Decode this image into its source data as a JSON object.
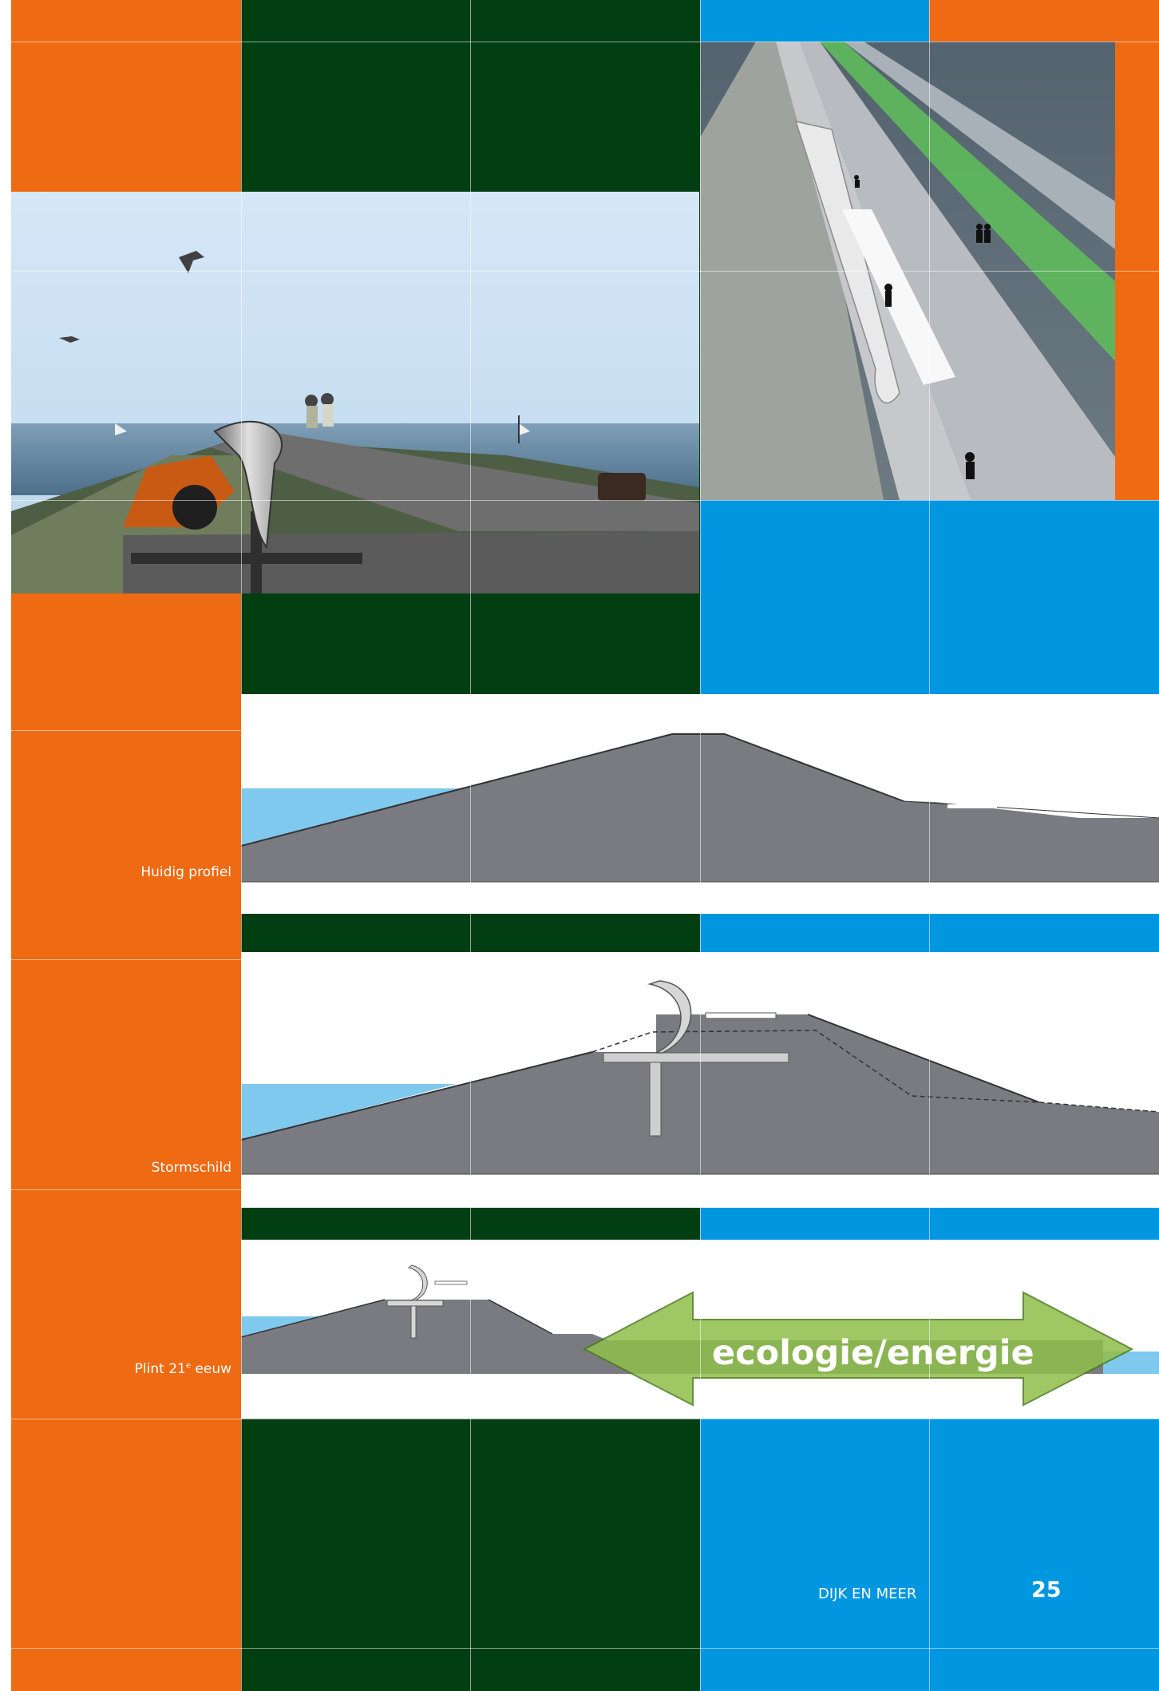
{
  "profiles": {
    "current_label": "Huidig profiel",
    "stormshield_label": "Stormschild",
    "plinth_label_main": "Plint 21",
    "plinth_label_sup": "e",
    "plinth_label_end": " eeuw",
    "arrow_text": "ecologie/energie"
  },
  "footer": {
    "title": "DIJK EN MEER",
    "page_number": "25"
  },
  "colors": {
    "orange": "#ee6a13",
    "dark_green": "#013e12",
    "blue": "#0096e0",
    "dike_grey": "#7a7b80",
    "water_blue": "#7fc9ee",
    "arrow_green": "#8fbf4a"
  }
}
